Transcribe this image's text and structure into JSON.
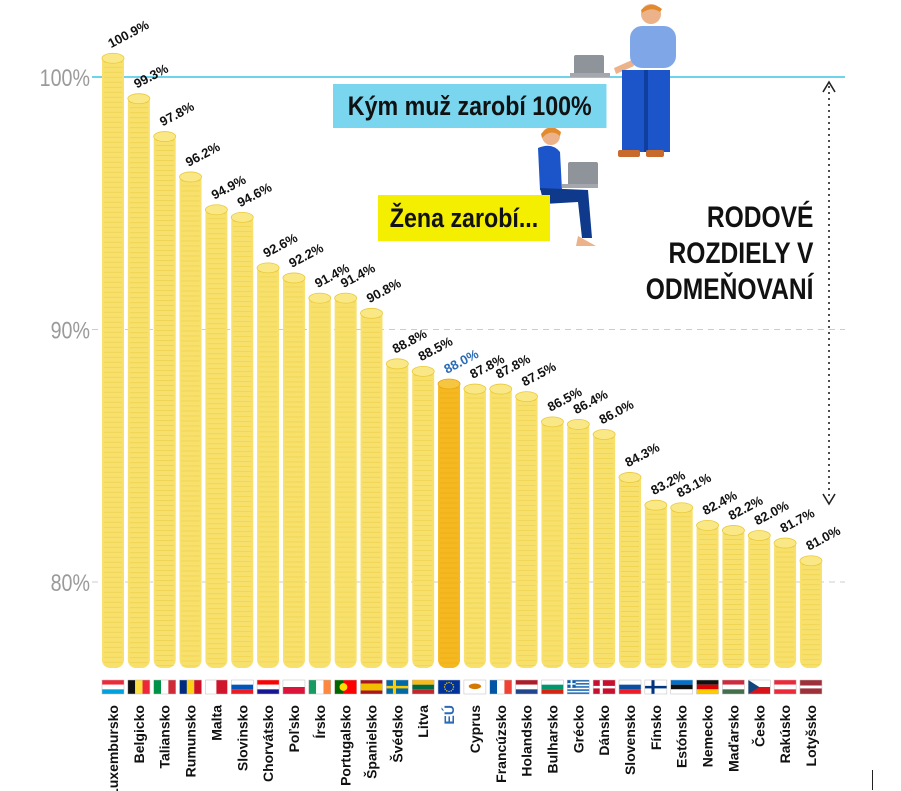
{
  "chart_data": {
    "type": "bar",
    "categories": [
      "Luxembursko",
      "Belgicko",
      "Taliansko",
      "Rumunsko",
      "Malta",
      "Slovinsko",
      "Chorvátsko",
      "Poľsko",
      "Írsko",
      "Portugalsko",
      "Španielsko",
      "Švédsko",
      "Litva",
      "EÚ",
      "Cyprus",
      "Francúzsko",
      "Holandsko",
      "Bulharsko",
      "Grécko",
      "Dánsko",
      "Slovensko",
      "Fínsko",
      "Estónsko",
      "Nemecko",
      "Maďarsko",
      "Česko",
      "Rakúsko",
      "Lotyšsko"
    ],
    "values": [
      100.9,
      99.3,
      97.8,
      96.2,
      94.9,
      94.6,
      92.6,
      92.2,
      91.4,
      91.4,
      90.8,
      88.8,
      88.5,
      88.0,
      87.8,
      87.8,
      87.5,
      86.5,
      86.4,
      86.0,
      84.3,
      83.2,
      83.1,
      82.4,
      82.2,
      82.0,
      81.7,
      81.0
    ],
    "value_labels": [
      "100.9%",
      "99.3%",
      "97.8%",
      "96.2%",
      "94.9%",
      "94.6%",
      "92.6%",
      "92.2%",
      "91.4%",
      "91.4%",
      "90.8%",
      "88.8%",
      "88.5%",
      "88.0%",
      "87.8%",
      "87.8%",
      "87.5%",
      "86.5%",
      "86.4%",
      "86.0%",
      "84.3%",
      "83.2%",
      "83.1%",
      "82.4%",
      "82.2%",
      "82.0%",
      "81.7%",
      "81.0%"
    ],
    "highlight": "EÚ",
    "yticks": [
      "80%",
      "90%",
      "100%"
    ],
    "ytick_values": [
      80,
      90,
      100
    ],
    "ylim": [
      76.5,
      102.5
    ],
    "reference_line": 100,
    "grid": true,
    "colors": {
      "bar": "#f8e06c",
      "bar_edge": "#e9c93a",
      "highlight_bar": "#f5b820",
      "highlight_label": "#2a6ab6",
      "reference": "#6fd3ec",
      "grid": "#cccccc"
    }
  },
  "annotations": {
    "man_label": "Kým muž zarobí 100%",
    "woman_label": "Žena zarobí...",
    "gap_title": [
      "RODOVÉ",
      "ROZDIELY V",
      "ODMEŇOVANÍ"
    ]
  },
  "flags": [
    "luxembourg-flag",
    "belgium-flag",
    "italy-flag",
    "romania-flag",
    "malta-flag",
    "slovenia-flag",
    "croatia-flag",
    "poland-flag",
    "ireland-flag",
    "portugal-flag",
    "spain-flag",
    "sweden-flag",
    "lithuania-flag",
    "eu-flag",
    "cyprus-flag",
    "france-flag",
    "netherlands-flag",
    "bulgaria-flag",
    "greece-flag",
    "denmark-flag",
    "slovakia-flag",
    "finland-flag",
    "estonia-flag",
    "germany-flag",
    "hungary-flag",
    "czechia-flag",
    "austria-flag",
    "latvia-flag"
  ]
}
